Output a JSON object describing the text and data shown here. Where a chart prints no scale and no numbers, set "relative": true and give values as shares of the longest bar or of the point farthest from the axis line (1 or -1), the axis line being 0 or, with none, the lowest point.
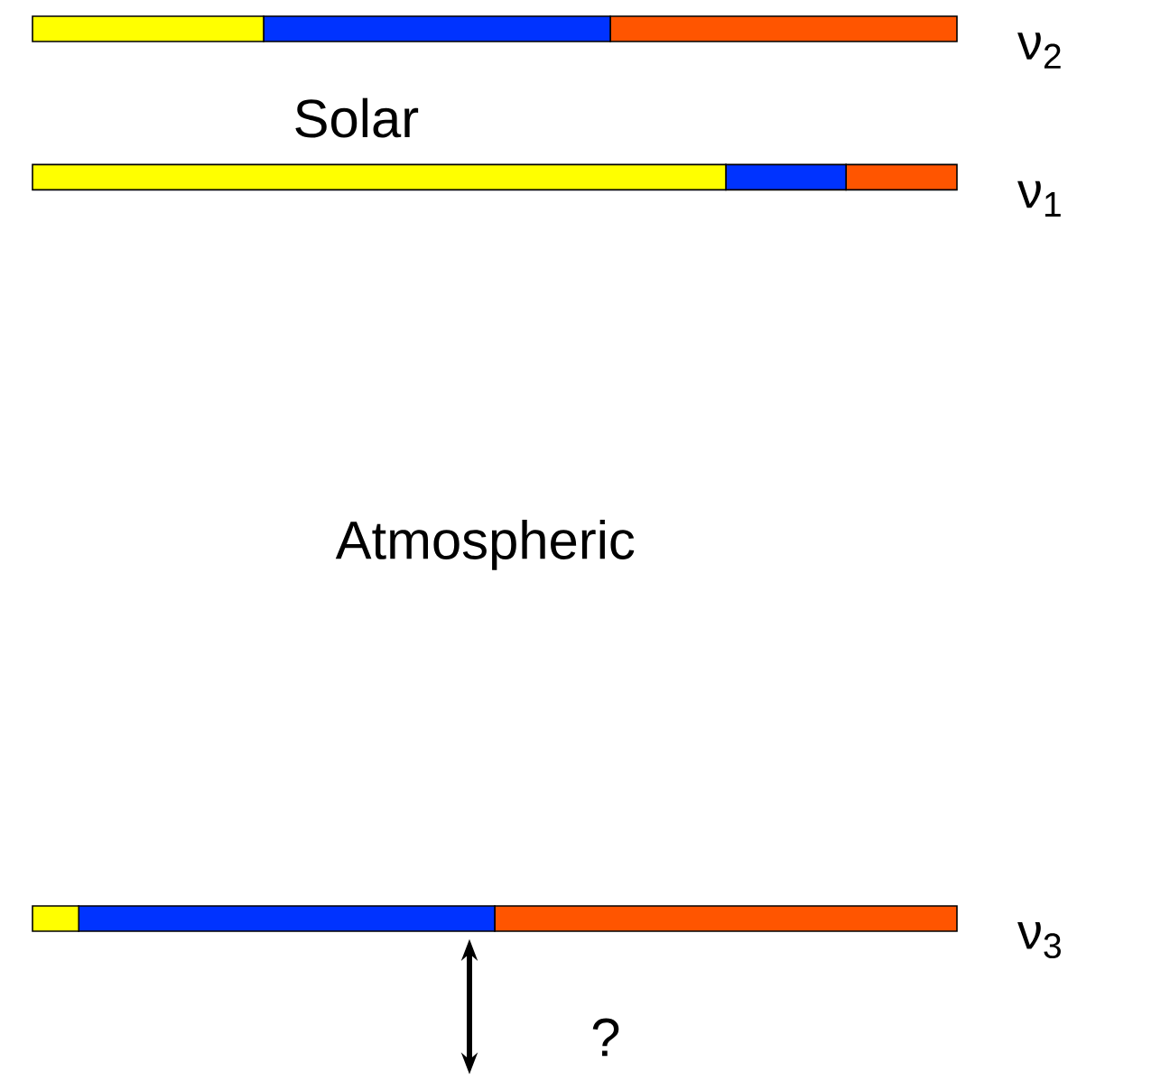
{
  "chart_data": {
    "type": "bar",
    "orientation": "horizontal",
    "stacked": true,
    "relative": true,
    "categories": [
      "ν$_{2}$",
      "ν$_{1}$",
      null,
      null,
      null,
      null,
      "ν$_{3}$"
    ],
    "series": [
      {
        "color": "#ffff00",
        "values": [
          0.25,
          0.75,
          null,
          null,
          null,
          null,
          0.05
        ]
      },
      {
        "color": "#0033ff",
        "values": [
          0.375,
          0.13,
          null,
          null,
          null,
          null,
          0.45
        ]
      },
      {
        "color": "#ff5500",
        "values": [
          0.375,
          0.12,
          null,
          null,
          null,
          null,
          0.5
        ]
      }
    ],
    "annotations": [
      "Solar",
      "Atmospheric",
      "?"
    ]
  }
}
